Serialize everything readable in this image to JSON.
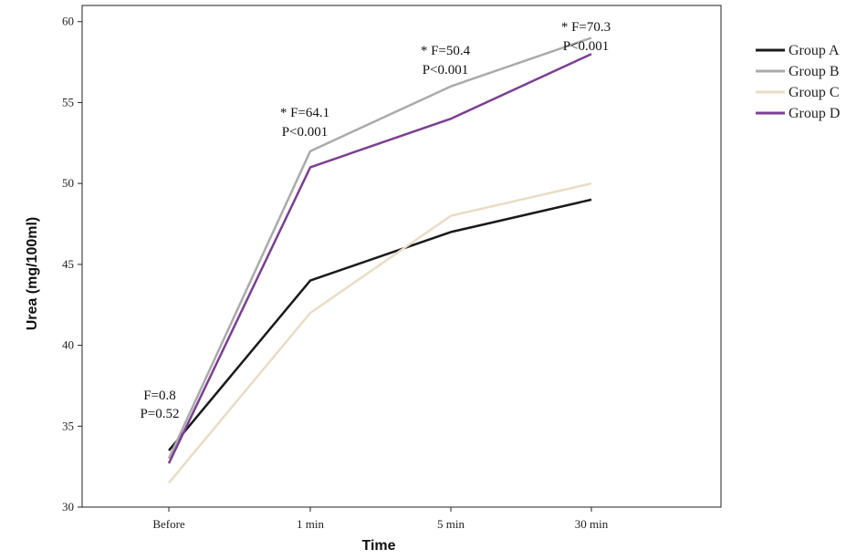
{
  "chart_data": {
    "type": "line",
    "title": "",
    "xlabel": "Time",
    "ylabel": "Urea (mg/100ml)",
    "categories": [
      "Before",
      "1 min",
      "5 min",
      "30 min"
    ],
    "ylim": [
      30,
      61
    ],
    "yticks": [
      30,
      35,
      40,
      45,
      50,
      55,
      60
    ],
    "series": [
      {
        "name": "Group A",
        "color": "#1a1a1a",
        "values": [
          33.5,
          44,
          47,
          49
        ]
      },
      {
        "name": "Group B",
        "color": "#aaaaaa",
        "values": [
          33,
          52,
          56,
          59
        ]
      },
      {
        "name": "Group C",
        "color": "#e9dcc5",
        "values": [
          31.5,
          42,
          48,
          50
        ]
      },
      {
        "name": "Group D",
        "color": "#7b3f91",
        "values": [
          32.7,
          51,
          54,
          58
        ]
      }
    ],
    "annotations": [
      {
        "category": "Before",
        "lines": [
          "F=0.8",
          "P=0.52"
        ]
      },
      {
        "category": "1 min",
        "lines": [
          "* F=64.1",
          "P<0.001"
        ]
      },
      {
        "category": "5 min",
        "lines": [
          "* F=50.4",
          "P<0.001"
        ]
      },
      {
        "category": "30 min",
        "lines": [
          "* F=70.3",
          "P<0.001"
        ]
      }
    ],
    "legend_position": "top-right",
    "grid": false
  }
}
